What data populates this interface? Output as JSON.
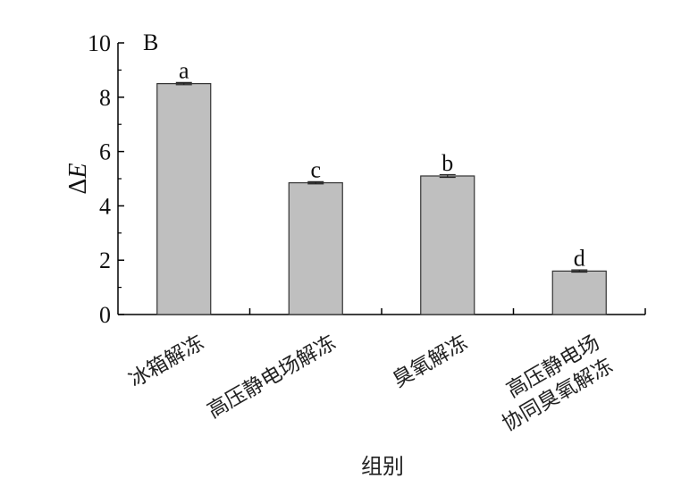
{
  "chart_data": {
    "type": "bar",
    "panel_label": "B",
    "ylabel": "ΔE",
    "xlabel": "组别",
    "ylim": [
      0,
      10
    ],
    "yticks": [
      0,
      2,
      4,
      6,
      8,
      10
    ],
    "grid": false,
    "categories": [
      "冰箱解冻",
      "高压静电场解冻",
      "臭氧解冻",
      "高压静电场\n协同臭氧解冻"
    ],
    "values": [
      8.5,
      4.85,
      5.1,
      1.6
    ],
    "errors": [
      0.04,
      0.04,
      0.05,
      0.04
    ],
    "significance": [
      "a",
      "c",
      "b",
      "d"
    ],
    "colors": {
      "bar_fill": "#bfbfbf",
      "bar_stroke": "#333333",
      "axis": "#000000"
    }
  }
}
